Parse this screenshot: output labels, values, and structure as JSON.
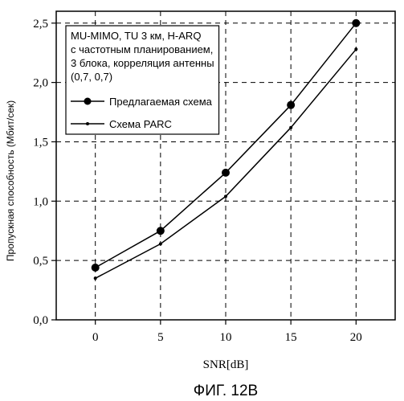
{
  "chart_data": {
    "type": "line",
    "title": "",
    "xlabel": "SNR[dB]",
    "ylabel": "Пропускная способность (Мбит/сек)",
    "x": [
      0,
      5,
      10,
      15,
      20
    ],
    "xlim": [
      -3,
      23
    ],
    "ylim": [
      0,
      2.6
    ],
    "xticks": [
      "0",
      "5",
      "10",
      "15",
      "20"
    ],
    "yticks": [
      "0,0",
      "0,5",
      "1,0",
      "1,5",
      "2,0",
      "2,5"
    ],
    "grid": "dashed",
    "legend_position": "top-left",
    "legend_header": [
      "MU-MIMO, TU 3 км, H-ARQ",
      "с частотным планированием,",
      "3 блока, корреляция антенны",
      "(0,7, 0,7)"
    ],
    "series": [
      {
        "name": "Предлагаемая схема",
        "marker": "large-dot",
        "values": [
          0.44,
          0.75,
          1.24,
          1.81,
          2.5
        ]
      },
      {
        "name": "Схема PARC",
        "marker": "small-dot",
        "values": [
          0.35,
          0.64,
          1.04,
          1.62,
          2.28
        ]
      }
    ],
    "caption": "ФИГ. 12B"
  }
}
